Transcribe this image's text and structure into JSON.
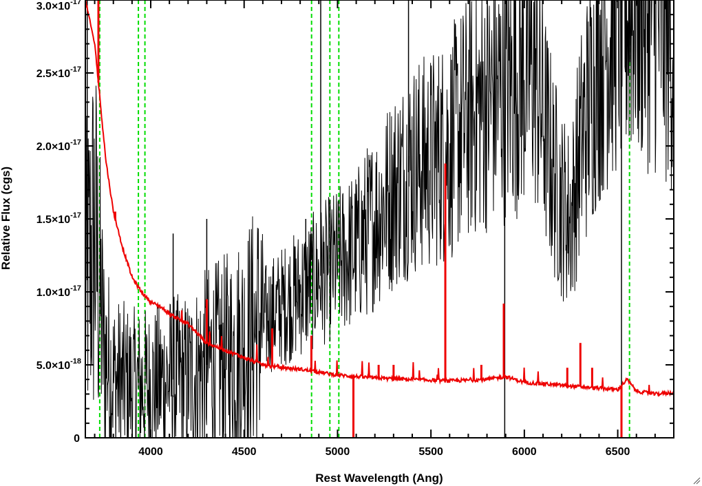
{
  "chart_data": {
    "type": "line",
    "xlabel": "Rest Wavelength (Ang)",
    "ylabel": "Relative Flux (cgs)",
    "xlim": [
      3650,
      6800
    ],
    "ylim": [
      0,
      3e-17
    ],
    "x_ticks": [
      {
        "value": 4000,
        "label": "4000"
      },
      {
        "value": 4500,
        "label": "4500"
      },
      {
        "value": 5000,
        "label": "5000"
      },
      {
        "value": 5500,
        "label": "5500"
      },
      {
        "value": 6000,
        "label": "6000"
      },
      {
        "value": 6500,
        "label": "6500"
      }
    ],
    "y_ticks": [
      {
        "value": 0,
        "mantissa": "0",
        "exponent": ""
      },
      {
        "value": 5e-18,
        "mantissa": "5.0×10",
        "exponent": "-18"
      },
      {
        "value": 1e-17,
        "mantissa": "1.0×10",
        "exponent": "-17"
      },
      {
        "value": 1.5e-17,
        "mantissa": "1.5×10",
        "exponent": "-17"
      },
      {
        "value": 2e-17,
        "mantissa": "2.0×10",
        "exponent": "-17"
      },
      {
        "value": 2.5e-17,
        "mantissa": "2.5×10",
        "exponent": "-17"
      },
      {
        "value": 3e-17,
        "mantissa": "3.0×10",
        "exponent": "-17"
      }
    ],
    "vertical_markers": {
      "color": "#00dd00",
      "style": "dashed",
      "x": [
        3727,
        3934,
        3969,
        4861,
        4959,
        5007,
        6563
      ]
    },
    "series": [
      {
        "color": "#000000",
        "noisy": true,
        "points": [
          [
            3650,
            1e-17
          ],
          [
            3700,
            1.4e-17
          ],
          [
            3750,
            6e-18
          ],
          [
            3800,
            4e-18
          ],
          [
            3900,
            3.5e-18
          ],
          [
            4000,
            3.5e-18
          ],
          [
            4100,
            4e-18
          ],
          [
            4200,
            4e-18
          ],
          [
            4300,
            5e-18
          ],
          [
            4400,
            5.5e-18
          ],
          [
            4500,
            6.5e-18
          ],
          [
            4600,
            8e-18
          ],
          [
            4700,
            9e-18
          ],
          [
            4800,
            1e-17
          ],
          [
            4900,
            1.1e-17
          ],
          [
            5000,
            1.2e-17
          ],
          [
            5100,
            1.3e-17
          ],
          [
            5200,
            1.5e-17
          ],
          [
            5300,
            1.7e-17
          ],
          [
            5400,
            1.85e-17
          ],
          [
            5500,
            1.9e-17
          ],
          [
            5600,
            2e-17
          ],
          [
            5700,
            2.2e-17
          ],
          [
            5800,
            2.3e-17
          ],
          [
            5900,
            2.4e-17
          ],
          [
            6000,
            2.5e-17
          ],
          [
            6050,
            2.55e-17
          ],
          [
            6100,
            2.2e-17
          ],
          [
            6150,
            1.85e-17
          ],
          [
            6200,
            1.6e-17
          ],
          [
            6250,
            1.5e-17
          ],
          [
            6300,
            2e-17
          ],
          [
            6400,
            2.6e-17
          ],
          [
            6500,
            2.9e-17
          ],
          [
            6600,
            3e-17
          ],
          [
            6700,
            2.9e-17
          ],
          [
            6800,
            2.7e-17
          ]
        ],
        "spikes": [
          [
            3660,
            3e-17
          ],
          [
            4910,
            3e-17
          ],
          [
            5380,
            3e-17
          ],
          [
            5895,
            0.0
          ],
          [
            6520,
            0.0
          ],
          [
            4300,
            1.5e-17
          ],
          [
            4120,
            1.4e-17
          ],
          [
            4830,
            1.5e-17
          ]
        ]
      },
      {
        "color": "#ee0000",
        "noisy": false,
        "points": [
          [
            3650,
            3e-17
          ],
          [
            3700,
            2.7e-17
          ],
          [
            3730,
            2.3e-17
          ],
          [
            3760,
            1.9e-17
          ],
          [
            3800,
            1.55e-17
          ],
          [
            3850,
            1.3e-17
          ],
          [
            3900,
            1.1e-17
          ],
          [
            3950,
            1e-17
          ],
          [
            4000,
            9.3e-18
          ],
          [
            4050,
            9e-18
          ],
          [
            4100,
            8.5e-18
          ],
          [
            4200,
            7.8e-18
          ],
          [
            4300,
            6.5e-18
          ],
          [
            4400,
            6e-18
          ],
          [
            4500,
            5.5e-18
          ],
          [
            4600,
            5e-18
          ],
          [
            4700,
            4.8e-18
          ],
          [
            4800,
            4.7e-18
          ],
          [
            4900,
            4.5e-18
          ],
          [
            5000,
            4.3e-18
          ],
          [
            5200,
            4.1e-18
          ],
          [
            5400,
            4e-18
          ],
          [
            5600,
            3.9e-18
          ],
          [
            5800,
            4e-18
          ],
          [
            5900,
            4.2e-18
          ],
          [
            6000,
            3.8e-18
          ],
          [
            6200,
            3.6e-18
          ],
          [
            6400,
            3.4e-18
          ],
          [
            6500,
            3.3e-18
          ],
          [
            6550,
            4e-18
          ],
          [
            6600,
            3.2e-18
          ],
          [
            6700,
            3e-18
          ],
          [
            6800,
            3.1e-18
          ]
        ],
        "spikes": [
          [
            3720,
            3e-17
          ],
          [
            3810,
            1.55e-17
          ],
          [
            4300,
            9.5e-18
          ],
          [
            4650,
            7.5e-18
          ],
          [
            4860,
            7e-18
          ],
          [
            5085,
            0.0
          ],
          [
            5577,
            1.88e-17
          ],
          [
            5890,
            9.2e-18
          ],
          [
            6300,
            6.5e-18
          ],
          [
            6363,
            4.8e-18
          ],
          [
            6520,
            0.0
          ],
          [
            5220,
            5e-18
          ],
          [
            5300,
            5e-18
          ],
          [
            5770,
            5e-18
          ],
          [
            6230,
            4.8e-18
          ]
        ]
      }
    ]
  }
}
